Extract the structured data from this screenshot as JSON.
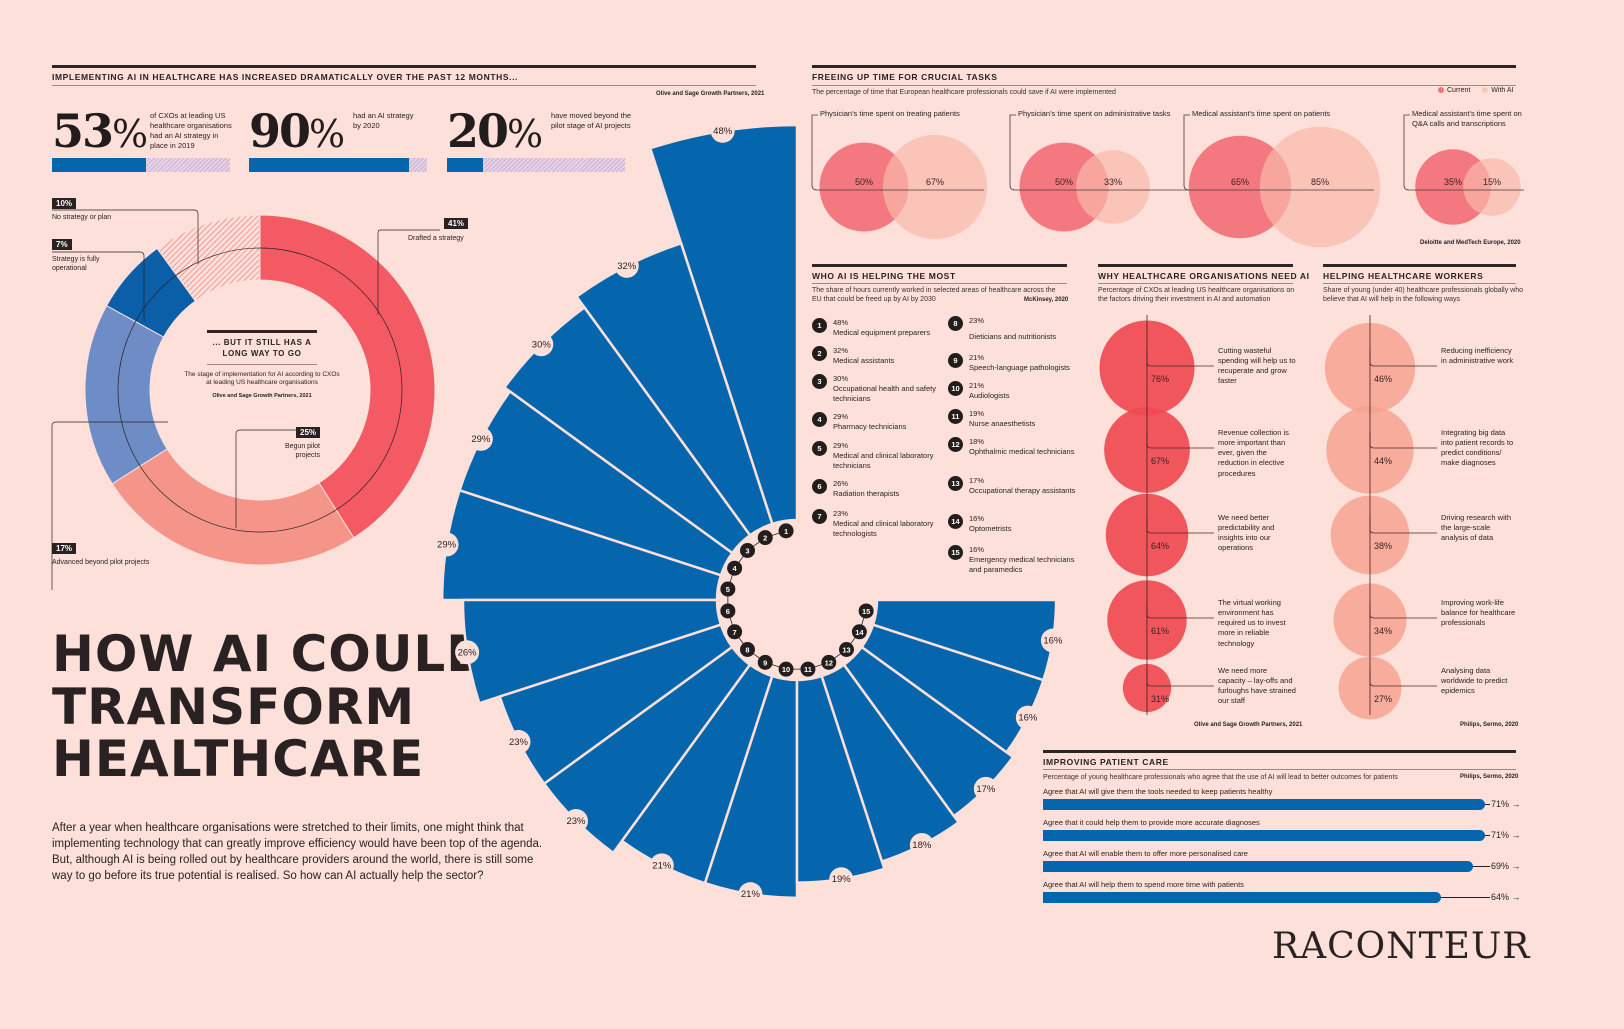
{
  "headline": [
    "HOW AI COULD",
    "TRANSFORM",
    "HEALTHCARE"
  ],
  "intro": "After a year when healthcare organisations were stretched to their limits, one might think that implementing technology that can greatly improve efficiency would have been top of the agenda. But, although AI is being rolled out by healthcare providers around the world, there is still some way to go before its true potential is realised. So how can AI actually help the sector?",
  "logo": "RACONTEUR",
  "implementing": {
    "title": "IMPLEMENTING AI IN HEALTHCARE HAS INCREASED DRAMATICALLY OVER THE PAST 12 MONTHS...",
    "source": "Olive and Sage Growth Partners, 2021",
    "stats": [
      {
        "value": "53",
        "unit": "%",
        "desc": "of CXOs at leading US healthcare organisations had an AI strategy in place in 2019",
        "fraction": 0.53
      },
      {
        "value": "90",
        "unit": "%",
        "desc": "had an AI strategy by 2020",
        "fraction": 0.9
      },
      {
        "value": "20",
        "unit": "%",
        "desc": "have moved beyond the pilot stage of AI projects",
        "fraction": 0.2
      }
    ]
  },
  "chart_data": [
    {
      "type": "pie",
      "title": "... BUT IT STILL HAS A LONG WAY TO GO",
      "subtitle": "The stage of implementation for AI according to CXOs at leading US healthcare organisations",
      "source": "Olive and Sage Growth Partners, 2021",
      "categories": [
        "Drafted a strategy",
        "Begun pilot projects",
        "Advanced beyond pilot projects",
        "Strategy is fully operational",
        "No strategy or plan"
      ],
      "values": [
        41,
        25,
        17,
        7,
        10
      ],
      "labels": [
        "41%",
        "25%",
        "17%",
        "7%",
        "10%"
      ],
      "colors": [
        "#f45a63",
        "#f5958a",
        "#6e8cc6",
        "#0a5fa8",
        "hatched"
      ]
    },
    {
      "type": "bar",
      "subtype": "radial",
      "title": "WHO AI IS HELPING THE MOST",
      "subtitle": "The share of hours currently worked in selected areas of healthcare across the EU that could be freed up by AI by 2030",
      "source": "McKinsey, 2020",
      "categories": [
        "Medical equipment preparers",
        "Medical assistants",
        "Occupational health and safety technicians",
        "Pharmacy technicians",
        "Medical and clinical laboratory technicians",
        "Radiation therapists",
        "Medical and clinical laboratory technologists",
        "Dieticians and nutritionists",
        "Speech-language pathologists",
        "Audiologists",
        "Nurse anaesthetists",
        "Ophthalmic medical technicians",
        "Occupational therapy assistants",
        "Optometrists",
        "Emergency medical technicians and paramedics"
      ],
      "values": [
        48,
        32,
        30,
        29,
        29,
        26,
        23,
        23,
        21,
        21,
        19,
        18,
        17,
        16,
        16
      ],
      "unit": "%"
    },
    {
      "type": "scatter",
      "subtype": "bubble-pairs",
      "title": "FREEING UP TIME FOR CRUCIAL TASKS",
      "subtitle": "The percentage of time that European healthcare professionals could save if AI were implemented",
      "source": "Deloitte and MedTech Europe, 2020",
      "legend": [
        "Current",
        "With AI"
      ],
      "legend_position": "top-right",
      "categories": [
        "Physician's time spent on treating patients",
        "Physician's time spent on administrative tasks",
        "Medical assistant's time spent on patients",
        "Medical assistant's time spent on Q&A calls and transcriptions"
      ],
      "series": [
        {
          "name": "Current",
          "values": [
            50,
            50,
            65,
            35
          ]
        },
        {
          "name": "With AI",
          "values": [
            67,
            33,
            85,
            15
          ]
        }
      ]
    },
    {
      "type": "bar",
      "subtype": "bubble-column",
      "title": "WHY HEALTHCARE ORGANISATIONS NEED AI",
      "subtitle": "Percentage of CXOs at leading US healthcare organisations on the factors driving their investment in AI and automation",
      "source": "Olive and Sage Growth Partners, 2021",
      "categories": [
        "Cutting wasteful spending will help us to recuperate and grow faster",
        "Revenue collection is more important than ever, given the reduction in elective procedures",
        "We need better predictability and insights into our operations",
        "The virtual working environment has required us to invest more in reliable technology",
        "We need more capacity – lay-offs and furloughs have strained our staff"
      ],
      "values": [
        76,
        67,
        64,
        61,
        31
      ]
    },
    {
      "type": "bar",
      "subtype": "bubble-column",
      "title": "HELPING HEALTHCARE WORKERS",
      "subtitle": "Share of young (under 40) healthcare professionals globally who believe that AI will help in the following ways",
      "source": "Philips, Sermo, 2020",
      "categories": [
        "Reducing inefficiency in administrative work",
        "Integrating big data into patient records to predict conditions/ make diagnoses",
        "Driving research with the large-scale analysis of data",
        "Improving work-life balance for healthcare professionals",
        "Analysing data worldwide to predict epidemics"
      ],
      "values": [
        46,
        44,
        38,
        34,
        27
      ]
    },
    {
      "type": "bar",
      "subtype": "horizontal",
      "title": "IMPROVING PATIENT CARE",
      "subtitle": "Percentage of young healthcare professionals who agree that the use of AI will lead to better outcomes for patients",
      "source": "Philips, Sermo, 2020",
      "categories": [
        "Agree that AI will give them the tools needed to keep patients healthy",
        "Agree that it could help them to provide more accurate diagnoses",
        "Agree that AI will enable them to offer more personalised care",
        "Agree that AI will help them to spend more time with patients"
      ],
      "values": [
        71,
        71,
        69,
        64
      ]
    }
  ],
  "ui": {
    "legend_current": "Current",
    "legend_withai": "With AI",
    "arrow": "→"
  },
  "colors": {
    "background": "#fde0d9",
    "blue": "#0565ad",
    "red": "#f04a52",
    "salmon": "#f6a291",
    "current": "#f3727a",
    "withai": "#f8bfb3",
    "dark": "#2a2222"
  }
}
